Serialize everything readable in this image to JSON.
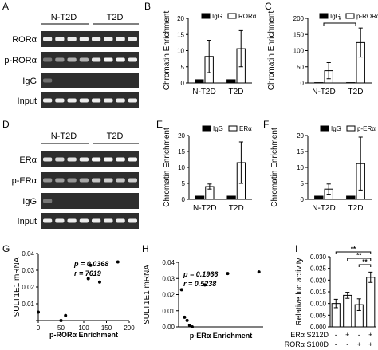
{
  "panel_letters": {
    "A": "A",
    "B": "B",
    "C": "C",
    "D": "D",
    "E": "E",
    "F": "F",
    "G": "G",
    "H": "H",
    "I": "I"
  },
  "gelA": {
    "group_labels": [
      "N-T2D",
      "T2D"
    ],
    "row_labels": [
      "RORα",
      "p-RORα",
      "IgG",
      "Input"
    ],
    "band_intensity": [
      [
        0.9,
        0.92,
        0.9,
        0.92,
        0.9,
        0.92,
        0.92,
        0.9
      ],
      [
        0.3,
        0.45,
        0.6,
        0.6,
        0.85,
        0.95,
        0.95,
        0.9
      ],
      [
        0.25,
        0.0,
        0.0,
        0.0,
        0.0,
        0.0,
        0.0,
        0.0
      ],
      [
        0.9,
        0.9,
        0.9,
        0.9,
        0.9,
        0.9,
        0.9,
        0.9
      ]
    ]
  },
  "gelD": {
    "group_labels": [
      "N-T2D",
      "T2D"
    ],
    "row_labels": [
      "ERα",
      "p-ERα",
      "IgG",
      "Input"
    ],
    "band_intensity": [
      [
        0.85,
        0.8,
        0.85,
        0.9,
        0.95,
        0.95,
        0.95,
        0.95
      ],
      [
        0.45,
        0.5,
        0.45,
        0.55,
        0.7,
        0.75,
        0.7,
        0.75
      ],
      [
        0.3,
        0.0,
        0.0,
        0.0,
        0.0,
        0.0,
        0.0,
        0.0
      ],
      [
        0.9,
        0.9,
        0.9,
        0.9,
        0.9,
        0.9,
        0.9,
        0.9
      ]
    ]
  },
  "chart_data": [
    {
      "panel": "B",
      "type": "bar",
      "categories": [
        "N-T2D",
        "T2D"
      ],
      "series": [
        {
          "name": "IgG",
          "values": [
            1,
            1
          ],
          "err": [
            0,
            0
          ],
          "fill": "#000000"
        },
        {
          "name": "RORα",
          "values": [
            8.2,
            10.6
          ],
          "err": [
            5.0,
            5.6
          ],
          "fill": "#ffffff"
        }
      ],
      "ylabel": "Chromatin Enrichment",
      "ylim": [
        0,
        20
      ],
      "yticks": [
        0,
        5,
        10,
        15,
        20
      ],
      "legend": "top"
    },
    {
      "panel": "C",
      "type": "bar",
      "categories": [
        "N-T2D",
        "T2D"
      ],
      "series": [
        {
          "name": "IgG",
          "values": [
            1,
            1
          ],
          "err": [
            0,
            0
          ],
          "fill": "#000000"
        },
        {
          "name": "p-RORα",
          "values": [
            38,
            125
          ],
          "err": [
            25,
            45
          ],
          "fill": "#ffffff"
        }
      ],
      "ylabel": "Chromatin Enrichment",
      "ylim": [
        0,
        200
      ],
      "yticks": [
        0,
        50,
        100,
        150,
        200
      ],
      "legend": "top",
      "annotations": [
        {
          "text": "*",
          "between": [
            0,
            1
          ]
        }
      ]
    },
    {
      "panel": "E",
      "type": "bar",
      "categories": [
        "N-T2D",
        "T2D"
      ],
      "series": [
        {
          "name": "IgG",
          "values": [
            1,
            1
          ],
          "err": [
            0,
            0
          ],
          "fill": "#000000"
        },
        {
          "name": "ERα",
          "values": [
            4,
            11.5
          ],
          "err": [
            0.8,
            6.5
          ],
          "fill": "#ffffff"
        }
      ],
      "ylabel": "Chromatin Enrichment",
      "ylim": [
        0,
        20
      ],
      "yticks": [
        0,
        5,
        10,
        15,
        20
      ],
      "legend": "top"
    },
    {
      "panel": "F",
      "type": "bar",
      "categories": [
        "N-T2D",
        "T2D"
      ],
      "series": [
        {
          "name": "IgG",
          "values": [
            1,
            1
          ],
          "err": [
            0,
            0
          ],
          "fill": "#000000"
        },
        {
          "name": "p-ERα",
          "values": [
            3.2,
            11.2
          ],
          "err": [
            1.6,
            8.3
          ],
          "fill": "#ffffff"
        }
      ],
      "ylabel": "Chromatin Enrichment",
      "ylim": [
        0,
        20
      ],
      "yticks": [
        0,
        5,
        10,
        15,
        20
      ],
      "legend": "top"
    },
    {
      "panel": "G",
      "type": "scatter",
      "points": [
        [
          0,
          0.005
        ],
        [
          50,
          0.0
        ],
        [
          60,
          0.003
        ],
        [
          110,
          0.025
        ],
        [
          115,
          0.033
        ],
        [
          135,
          0.023
        ],
        [
          175,
          0.035
        ]
      ],
      "xlabel": "p-RORα Enrichment",
      "ylabel": "SULT1E1 mRNA",
      "xlim": [
        0,
        200
      ],
      "ylim": [
        0,
        0.04
      ],
      "xticks": [
        0,
        50,
        100,
        150,
        200
      ],
      "yticks": [
        0.0,
        0.01,
        0.02,
        0.03,
        0.04
      ],
      "ytick_labels": [
        "",
        "0.01",
        "0.02",
        "0.03",
        "0.04"
      ],
      "stats": {
        "p": "p = 0.0368",
        "r": "r = 7619"
      }
    },
    {
      "panel": "H",
      "type": "scatter",
      "points": [
        [
          0.7,
          0.023
        ],
        [
          1.4,
          0.006
        ],
        [
          2.0,
          0.004
        ],
        [
          2.6,
          0.001
        ],
        [
          3.2,
          0.0
        ],
        [
          6.2,
          0.026
        ],
        [
          11.6,
          0.033
        ],
        [
          19.0,
          0.034
        ]
      ],
      "xlabel": "p-ERα Enrichment",
      "ylabel": "SULT1E1 mRNA",
      "xlim": [
        0,
        20
      ],
      "ylim": [
        0,
        0.04
      ],
      "xticks": [],
      "yticks": [
        0.0,
        0.01,
        0.02,
        0.03,
        0.04
      ],
      "ytick_labels": [
        "0.00",
        "0.01",
        "0.02",
        "0.03",
        "0.04"
      ],
      "stats": {
        "p": "p = 0.1966",
        "r": "r = 0.5238"
      }
    },
    {
      "panel": "I",
      "type": "bar",
      "categories": [
        "1",
        "2",
        "3",
        "4"
      ],
      "values": [
        0.01,
        0.0135,
        0.0095,
        0.0212
      ],
      "err": [
        0.0018,
        0.0013,
        0.0025,
        0.0022
      ],
      "ylabel": "Relative luc activity",
      "ylim": [
        0,
        0.03
      ],
      "yticks": [
        0.0,
        0.005,
        0.01,
        0.015,
        0.02,
        0.025,
        0.03
      ],
      "ytick_labels": [
        "0.000",
        "0.005",
        "0.010",
        "0.015",
        "0.020",
        "0.025",
        "0.030"
      ],
      "treatment_labels": [
        "ERα S212D",
        "RORα S100D"
      ],
      "treatment_signs": [
        [
          "-",
          "+",
          "-",
          "+"
        ],
        [
          "-",
          "-",
          "+",
          "+"
        ]
      ],
      "brackets": [
        {
          "from": 0,
          "to": 3,
          "text": "**"
        },
        {
          "from": 1,
          "to": 3,
          "text": "**"
        },
        {
          "from": 2,
          "to": 3,
          "text": "**"
        }
      ]
    }
  ]
}
